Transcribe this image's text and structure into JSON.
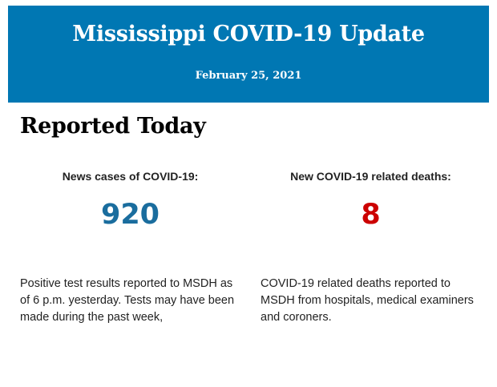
{
  "header": {
    "title": "Mississippi COVID-19 Update",
    "date": "February 25, 2021",
    "background_color": "#0077b3"
  },
  "section": {
    "heading": "Reported Today"
  },
  "stats": [
    {
      "label": "News cases of COVID-19:",
      "value": "920",
      "color": "#1a6d9e",
      "description": "Positive test results reported to MSDH as of 6 p.m. yesterday. Tests may have been made during the past week,"
    },
    {
      "label": "New COVID-19 related deaths:",
      "value": "8",
      "color": "#cc0000",
      "description": "COVID-19 related deaths reported to MSDH from hospitals, medical examiners and coroners."
    }
  ]
}
